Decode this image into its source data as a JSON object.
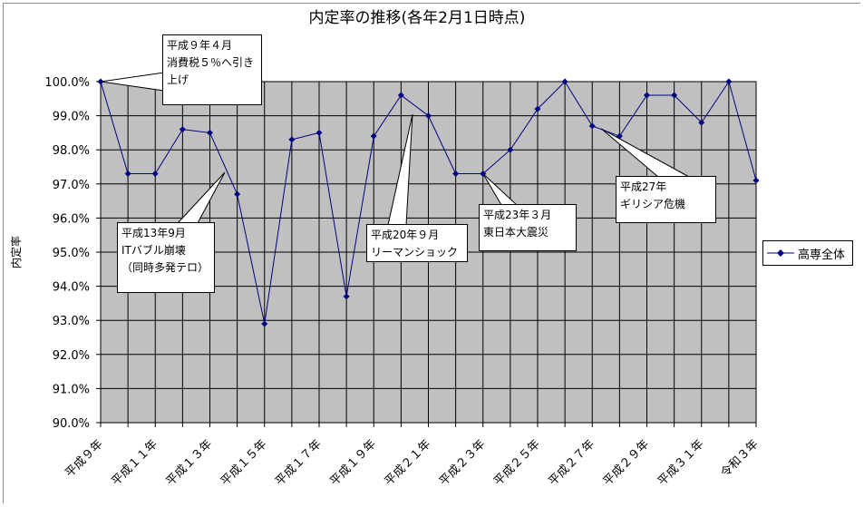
{
  "chart_data": {
    "type": "line",
    "title": "内定率の推移(各年2月1日時点)",
    "ylabel": "内定率",
    "xlabel": "",
    "ylim": [
      90,
      100
    ],
    "y_ticks": [
      "90.0%",
      "91.0%",
      "92.0%",
      "93.0%",
      "94.0%",
      "95.0%",
      "96.0%",
      "97.0%",
      "98.0%",
      "99.0%",
      "100.0%"
    ],
    "x_tick_labels": [
      "平成９年",
      "平成１１年",
      "平成１３年",
      "平成１５年",
      "平成１７年",
      "平成１９年",
      "平成２１年",
      "平成２３年",
      "平成２５年",
      "平成２７年",
      "平成２９年",
      "平成３１年",
      "令和３年"
    ],
    "grid": true,
    "plot_background": "#c0c0c0",
    "line_color": "#000080",
    "legend_position": "right",
    "series": [
      {
        "name": "高専全体",
        "values": [
          100.0,
          97.3,
          97.3,
          98.6,
          98.5,
          96.7,
          92.9,
          98.3,
          98.5,
          93.7,
          98.4,
          99.6,
          99.0,
          97.3,
          97.3,
          98.0,
          99.2,
          100.0,
          98.7,
          98.4,
          99.6,
          99.6,
          98.8,
          100.0,
          97.1
        ]
      }
    ],
    "annotations": [
      {
        "id": "h9",
        "text": "平成９年４月\n消費税５％へ引き\n上げ",
        "point_index": 0
      },
      {
        "id": "h13",
        "text": "平成13年9月\nITバブル崩壊\n（同時多発テロ）",
        "point_index": 4.5
      },
      {
        "id": "h20",
        "text": "平成20年９月\nリーマンショック",
        "point_index": 11.5
      },
      {
        "id": "h23",
        "text": "平成23年３月\n東日本大震災",
        "point_index": 14
      },
      {
        "id": "h27",
        "text": "平成27年\nギリシア危機",
        "point_index": 19
      }
    ]
  }
}
